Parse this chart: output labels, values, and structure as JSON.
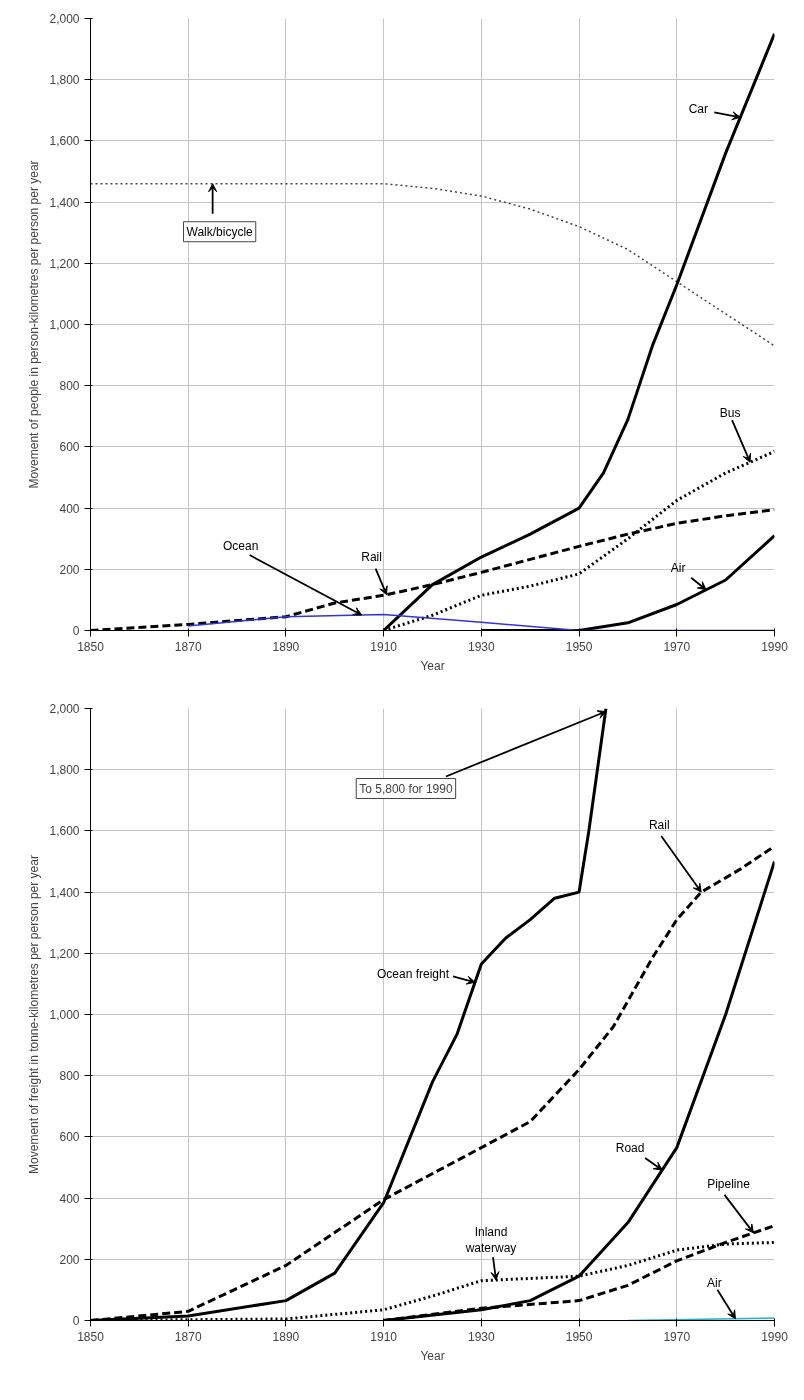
{
  "chart_data": [
    {
      "type": "line",
      "xlabel": "Year",
      "ylabel": "Movement of people in person-kilometres per person per year",
      "xlim": [
        1850,
        1990
      ],
      "ylim": [
        0,
        2000
      ],
      "xticks": [
        1850,
        1870,
        1890,
        1910,
        1930,
        1950,
        1970,
        1990
      ],
      "yticks": [
        0,
        {
          "value": 200,
          "label": "200"
        },
        {
          "value": 400,
          "label": "400"
        },
        {
          "value": 600,
          "label": "600"
        },
        {
          "value": 800,
          "label": "800"
        },
        {
          "value": 1000,
          "label": "1,000"
        },
        {
          "value": 1200,
          "label": "1,200"
        },
        {
          "value": 1400,
          "label": "1,400"
        },
        {
          "value": 1600,
          "label": "1,600"
        },
        {
          "value": 1800,
          "label": "1,800"
        },
        {
          "value": 2000,
          "label": "2,000"
        }
      ],
      "grid": true,
      "series": [
        {
          "name": "Walk/bicycle",
          "color": "#444444",
          "line_style": "dotted",
          "x": [
            1850,
            1870,
            1890,
            1910,
            1920,
            1930,
            1940,
            1950,
            1960,
            1970,
            1980,
            1990
          ],
          "values": [
            1460,
            1460,
            1460,
            1460,
            1445,
            1420,
            1377,
            1320,
            1245,
            1140,
            1035,
            930
          ]
        },
        {
          "name": "Car",
          "color": "#000000",
          "line_style": "solid",
          "x": [
            1910,
            1920,
            1930,
            1940,
            1950,
            1955,
            1960,
            1965,
            1970,
            1980,
            1990
          ],
          "values": [
            0,
            150,
            240,
            315,
            400,
            515,
            690,
            930,
            1130,
            1560,
            1950
          ]
        },
        {
          "name": "Rail",
          "color": "#000000",
          "line_style": "dashed",
          "x": [
            1850,
            1870,
            1890,
            1900,
            1910,
            1920,
            1930,
            1950,
            1960,
            1970,
            1980,
            1990
          ],
          "values": [
            0,
            20,
            45,
            90,
            115,
            150,
            190,
            275,
            315,
            350,
            375,
            395
          ]
        },
        {
          "name": "Bus",
          "color": "#000000",
          "line_style": "dotted",
          "x": [
            1910,
            1920,
            1930,
            1940,
            1950,
            1960,
            1970,
            1980,
            1990
          ],
          "values": [
            0,
            50,
            115,
            145,
            185,
            300,
            425,
            515,
            585
          ]
        },
        {
          "name": "Air",
          "color": "#000000",
          "line_style": "solid",
          "x": [
            1930,
            1950,
            1960,
            1970,
            1980,
            1990
          ],
          "values": [
            0,
            0,
            25,
            85,
            165,
            310
          ]
        },
        {
          "name": "Ocean",
          "color": "#3333dd",
          "line_style": "solid",
          "x": [
            1870,
            1890,
            1910,
            1930,
            1950,
            1970,
            1990
          ],
          "values": [
            15,
            45,
            52,
            27,
            0,
            0,
            0
          ]
        }
      ]
    },
    {
      "type": "line",
      "xlabel": "Year",
      "ylabel": "Movement of freight in tonne-kilometres per person per year",
      "xlim": [
        1850,
        1990
      ],
      "ylim": [
        0,
        2000
      ],
      "xticks": [
        1850,
        1870,
        1890,
        1910,
        1930,
        1950,
        1970,
        1990
      ],
      "yticks": [
        0,
        {
          "value": 200,
          "label": "200"
        },
        {
          "value": 400,
          "label": "400"
        },
        {
          "value": 600,
          "label": "600"
        },
        {
          "value": 800,
          "label": "800"
        },
        {
          "value": 1000,
          "label": "1,000"
        },
        {
          "value": 1200,
          "label": "1,200"
        },
        {
          "value": 1400,
          "label": "1,400"
        },
        {
          "value": 1600,
          "label": "1,600"
        },
        {
          "value": 1800,
          "label": "1,800"
        },
        {
          "value": 2000,
          "label": "2,000"
        }
      ],
      "grid": true,
      "annotations": [
        {
          "text": "To 5,800 for 1990",
          "x": 1955.5,
          "y": 2000
        }
      ],
      "series": [
        {
          "name": "Ocean freight",
          "color": "#000000",
          "line_style": "solid",
          "x": [
            1850,
            1870,
            1890,
            1900,
            1910,
            1920,
            1925,
            1930,
            1935,
            1940,
            1945,
            1950,
            1952,
            1955.5
          ],
          "values": [
            0,
            15,
            65,
            155,
            385,
            780,
            935,
            1165,
            1250,
            1310,
            1380,
            1400,
            1600,
            2000
          ]
        },
        {
          "name": "Rail",
          "color": "#000000",
          "line_style": "dashed",
          "x": [
            1850,
            1870,
            1890,
            1910,
            1930,
            1940,
            1950,
            1957,
            1965,
            1970,
            1975,
            1983,
            1990
          ],
          "values": [
            0,
            30,
            180,
            395,
            565,
            650,
            820,
            960,
            1185,
            1310,
            1400,
            1475,
            1550
          ]
        },
        {
          "name": "Road",
          "color": "#000000",
          "line_style": "solid",
          "x": [
            1910,
            1930,
            1940,
            1950,
            1960,
            1970,
            1980,
            1990
          ],
          "values": [
            0,
            35,
            65,
            145,
            320,
            565,
            1000,
            1500
          ]
        },
        {
          "name": "Inland\nwaterway",
          "color": "#000000",
          "line_style": "dotted",
          "x": [
            1850,
            1890,
            1910,
            1920,
            1930,
            1950,
            1960,
            1970,
            1980,
            1990
          ],
          "values": [
            0,
            5,
            35,
            80,
            130,
            145,
            180,
            230,
            250,
            255
          ]
        },
        {
          "name": "Pipeline",
          "color": "#000000",
          "line_style": "dashed",
          "x": [
            1910,
            1930,
            1950,
            1960,
            1970,
            1980,
            1990
          ],
          "values": [
            0,
            40,
            65,
            115,
            195,
            255,
            310
          ]
        },
        {
          "name": "Air",
          "color": "#20b0c8",
          "line_style": "solid",
          "x": [
            1960,
            1990
          ],
          "values": [
            0,
            8
          ]
        }
      ]
    }
  ]
}
